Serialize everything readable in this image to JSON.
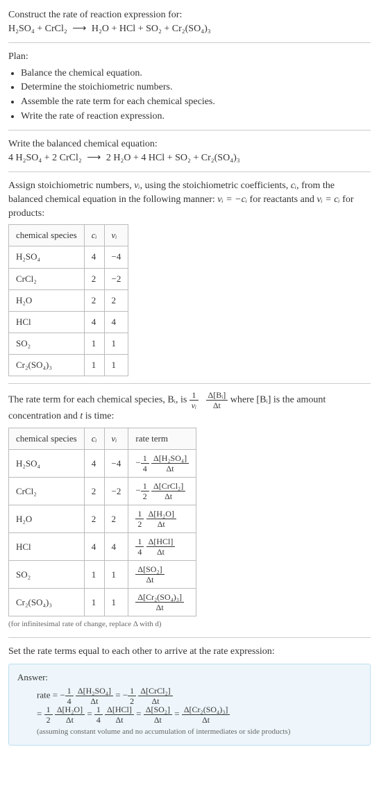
{
  "intro": {
    "line1": "Construct the rate of reaction expression for:",
    "equation_left": "H₂SO₄ + CrCl₂",
    "arrow": "⟶",
    "equation_right": "H₂O + HCl + SO₂ + Cr₂(SO₄)₃"
  },
  "plan": {
    "heading": "Plan:",
    "items": [
      "Balance the chemical equation.",
      "Determine the stoichiometric numbers.",
      "Assemble the rate term for each chemical species.",
      "Write the rate of reaction expression."
    ]
  },
  "balanced": {
    "heading": "Write the balanced chemical equation:",
    "left": "4 H₂SO₄ + 2 CrCl₂",
    "arrow": "⟶",
    "right": "2 H₂O + 4 HCl + SO₂ + Cr₂(SO₄)₃"
  },
  "assign": {
    "text_a": "Assign stoichiometric numbers, ",
    "nu": "νᵢ",
    "text_b": ", using the stoichiometric coefficients, ",
    "ci": "cᵢ",
    "text_c": ", from the balanced chemical equation in the following manner: ",
    "rel1": "νᵢ = −cᵢ",
    "text_d": " for reactants and ",
    "rel2": "νᵢ = cᵢ",
    "text_e": " for products:"
  },
  "table1": {
    "headers": [
      "chemical species",
      "cᵢ",
      "νᵢ"
    ],
    "rows": [
      [
        "H₂SO₄",
        "4",
        "−4"
      ],
      [
        "CrCl₂",
        "2",
        "−2"
      ],
      [
        "H₂O",
        "2",
        "2"
      ],
      [
        "HCl",
        "4",
        "4"
      ],
      [
        "SO₂",
        "1",
        "1"
      ],
      [
        "Cr₂(SO₄)₃",
        "1",
        "1"
      ]
    ]
  },
  "rateterm": {
    "text_a": "The rate term for each chemical species, Bᵢ, is ",
    "frac1_num": "1",
    "frac1_den": "νᵢ",
    "frac2_num": "Δ[Bᵢ]",
    "frac2_den": "Δt",
    "text_b": " where [Bᵢ] is the amount concentration and ",
    "t": "t",
    "text_c": " is time:"
  },
  "table2": {
    "headers": [
      "chemical species",
      "cᵢ",
      "νᵢ",
      "rate term"
    ],
    "rows": [
      {
        "species": "H₂SO₄",
        "c": "4",
        "nu": "−4",
        "sign": "−",
        "coef_num": "1",
        "coef_den": "4",
        "d_num": "Δ[H₂SO₄]",
        "d_den": "Δt"
      },
      {
        "species": "CrCl₂",
        "c": "2",
        "nu": "−2",
        "sign": "−",
        "coef_num": "1",
        "coef_den": "2",
        "d_num": "Δ[CrCl₂]",
        "d_den": "Δt"
      },
      {
        "species": "H₂O",
        "c": "2",
        "nu": "2",
        "sign": "",
        "coef_num": "1",
        "coef_den": "2",
        "d_num": "Δ[H₂O]",
        "d_den": "Δt"
      },
      {
        "species": "HCl",
        "c": "4",
        "nu": "4",
        "sign": "",
        "coef_num": "1",
        "coef_den": "4",
        "d_num": "Δ[HCl]",
        "d_den": "Δt"
      },
      {
        "species": "SO₂",
        "c": "1",
        "nu": "1",
        "sign": "",
        "coef_num": "",
        "coef_den": "",
        "d_num": "Δ[SO₂]",
        "d_den": "Δt"
      },
      {
        "species": "Cr₂(SO₄)₃",
        "c": "1",
        "nu": "1",
        "sign": "",
        "coef_num": "",
        "coef_den": "",
        "d_num": "Δ[Cr₂(SO₄)₃]",
        "d_den": "Δt"
      }
    ],
    "note": "(for infinitesimal rate of change, replace Δ with d)"
  },
  "setequal": "Set the rate terms equal to each other to arrive at the rate expression:",
  "answer": {
    "label": "Answer:",
    "prefix": "rate = ",
    "terms": [
      {
        "sign": "−",
        "coef_num": "1",
        "coef_den": "4",
        "d_num": "Δ[H₂SO₄]",
        "d_den": "Δt"
      },
      {
        "sign": "−",
        "coef_num": "1",
        "coef_den": "2",
        "d_num": "Δ[CrCl₂]",
        "d_den": "Δt"
      },
      {
        "sign": "",
        "coef_num": "1",
        "coef_den": "2",
        "d_num": "Δ[H₂O]",
        "d_den": "Δt"
      },
      {
        "sign": "",
        "coef_num": "1",
        "coef_den": "4",
        "d_num": "Δ[HCl]",
        "d_den": "Δt"
      },
      {
        "sign": "",
        "coef_num": "",
        "coef_den": "",
        "d_num": "Δ[SO₂]",
        "d_den": "Δt"
      },
      {
        "sign": "",
        "coef_num": "",
        "coef_den": "",
        "d_num": "Δ[Cr₂(SO₄)₃]",
        "d_den": "Δt"
      }
    ],
    "note": "(assuming constant volume and no accumulation of intermediates or side products)"
  }
}
